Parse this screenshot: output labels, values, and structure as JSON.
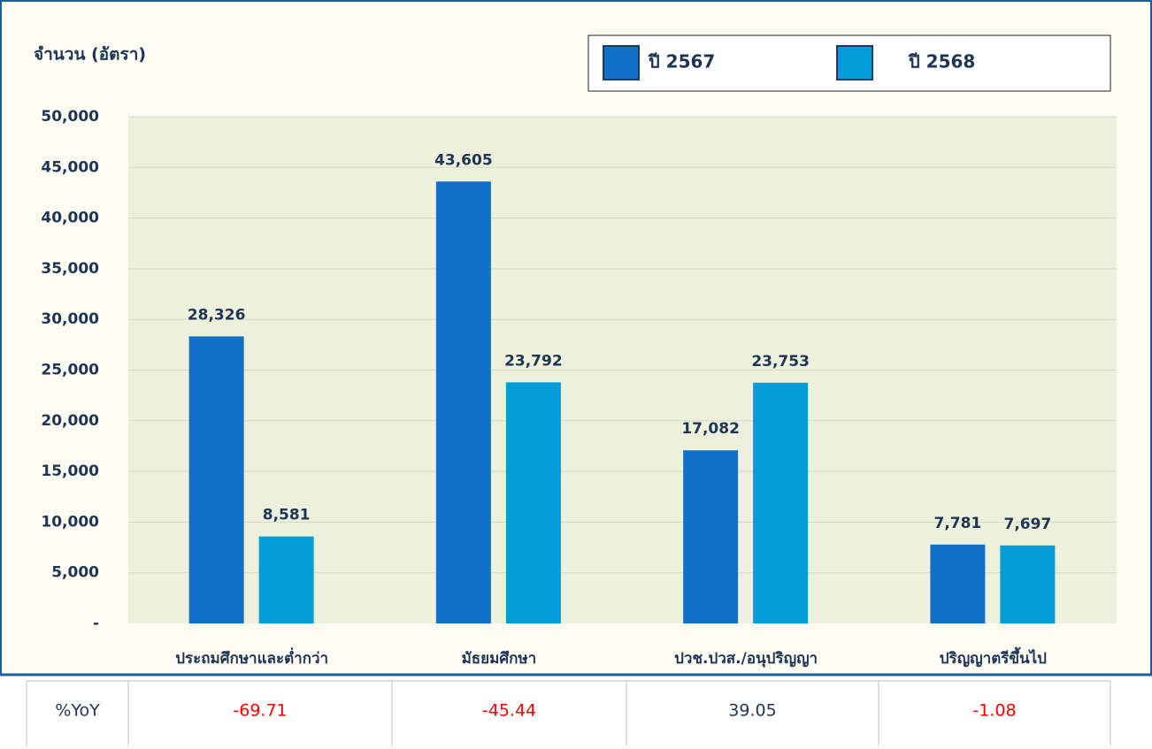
{
  "chart_data": {
    "type": "bar",
    "y_label": "จำนวน (อัตรา)",
    "categories": [
      "ประถมศึกษาและต่ำกว่า",
      "มัธยมศึกษา",
      "ปวช.ปวส./อนุปริญญา",
      "ปริญญาตรีขึ้นไป"
    ],
    "series": [
      {
        "name": "ปี 2567",
        "color": "#1170c8",
        "values": [
          28326,
          43605,
          17082,
          7781
        ],
        "value_labels": [
          "28,326",
          "43,605",
          "17,082",
          "7,781"
        ]
      },
      {
        "name": "ปี 2568",
        "color": "#009dd9",
        "values": [
          8581,
          23792,
          23753,
          7697
        ],
        "value_labels": [
          "8,581",
          "23,792",
          "23,753",
          "7,697"
        ]
      }
    ],
    "ylim": [
      0,
      50000
    ],
    "yticks": [
      {
        "value": 0,
        "label": "-"
      },
      {
        "value": 5000,
        "label": "5,000"
      },
      {
        "value": 10000,
        "label": "10,000"
      },
      {
        "value": 15000,
        "label": "15,000"
      },
      {
        "value": 20000,
        "label": "20,000"
      },
      {
        "value": 25000,
        "label": "25,000"
      },
      {
        "value": 30000,
        "label": "30,000"
      },
      {
        "value": 35000,
        "label": "35,000"
      },
      {
        "value": 40000,
        "label": "40,000"
      },
      {
        "value": 45000,
        "label": "45,000"
      },
      {
        "value": 50000,
        "label": "50,000"
      }
    ],
    "grid": true,
    "legend": "top-right"
  },
  "table": {
    "header": "%YoY",
    "values": [
      -69.71,
      -45.44,
      39.05,
      -1.08
    ]
  }
}
